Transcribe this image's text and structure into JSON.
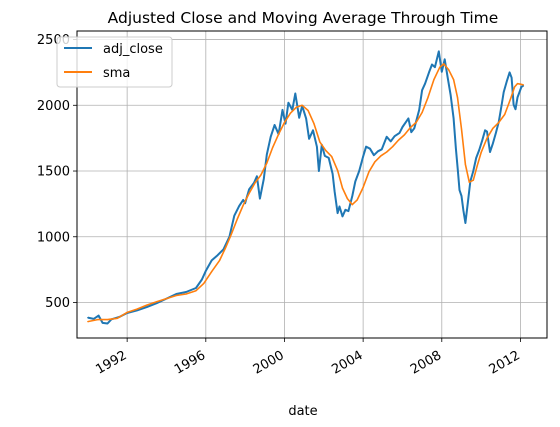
{
  "chart_data": {
    "type": "line",
    "title": "Adjusted Close and Moving Average Through Time",
    "xlabel": "date",
    "ylabel": "",
    "xlim": [
      1989.45,
      2013.35
    ],
    "ylim": [
      230,
      2565
    ],
    "x_ticks": [
      1992,
      1996,
      2000,
      2004,
      2008,
      2012
    ],
    "x_tick_labels": [
      "1992",
      "1996",
      "2000",
      "2004",
      "2008",
      "2012"
    ],
    "y_ticks": [
      500,
      1000,
      1500,
      2000,
      2500
    ],
    "y_tick_labels": [
      "500",
      "1000",
      "1500",
      "2000",
      "2500"
    ],
    "grid": true,
    "legend": "top-left",
    "series": [
      {
        "name": "adj_close",
        "color": "#1f77b4",
        "points": [
          [
            1990.0,
            385
          ],
          [
            1990.3,
            375
          ],
          [
            1990.55,
            400
          ],
          [
            1990.75,
            345
          ],
          [
            1991.0,
            340
          ],
          [
            1991.2,
            372
          ],
          [
            1991.6,
            390
          ],
          [
            1992.0,
            420
          ],
          [
            1992.5,
            440
          ],
          [
            1993.0,
            465
          ],
          [
            1993.5,
            495
          ],
          [
            1994.0,
            530
          ],
          [
            1994.5,
            565
          ],
          [
            1995.0,
            580
          ],
          [
            1995.5,
            610
          ],
          [
            1995.8,
            675
          ],
          [
            1996.0,
            740
          ],
          [
            1996.3,
            820
          ],
          [
            1996.6,
            860
          ],
          [
            1996.9,
            905
          ],
          [
            1997.2,
            1000
          ],
          [
            1997.45,
            1160
          ],
          [
            1997.7,
            1235
          ],
          [
            1997.9,
            1280
          ],
          [
            1998.0,
            1255
          ],
          [
            1998.2,
            1360
          ],
          [
            1998.45,
            1410
          ],
          [
            1998.6,
            1460
          ],
          [
            1998.75,
            1290
          ],
          [
            1998.95,
            1440
          ],
          [
            1999.1,
            1625
          ],
          [
            1999.3,
            1760
          ],
          [
            1999.5,
            1850
          ],
          [
            1999.7,
            1780
          ],
          [
            1999.9,
            1965
          ],
          [
            2000.05,
            1860
          ],
          [
            2000.2,
            2020
          ],
          [
            2000.4,
            1965
          ],
          [
            2000.55,
            2090
          ],
          [
            2000.75,
            1905
          ],
          [
            2000.9,
            1995
          ],
          [
            2001.1,
            1900
          ],
          [
            2001.25,
            1745
          ],
          [
            2001.45,
            1810
          ],
          [
            2001.65,
            1685
          ],
          [
            2001.75,
            1500
          ],
          [
            2001.9,
            1700
          ],
          [
            2002.05,
            1615
          ],
          [
            2002.25,
            1600
          ],
          [
            2002.45,
            1480
          ],
          [
            2002.55,
            1345
          ],
          [
            2002.7,
            1180
          ],
          [
            2002.8,
            1230
          ],
          [
            2002.95,
            1155
          ],
          [
            2003.1,
            1205
          ],
          [
            2003.25,
            1195
          ],
          [
            2003.45,
            1310
          ],
          [
            2003.6,
            1420
          ],
          [
            2003.8,
            1500
          ],
          [
            2004.0,
            1610
          ],
          [
            2004.15,
            1685
          ],
          [
            2004.35,
            1670
          ],
          [
            2004.55,
            1620
          ],
          [
            2004.75,
            1650
          ],
          [
            2004.95,
            1665
          ],
          [
            2005.2,
            1760
          ],
          [
            2005.4,
            1725
          ],
          [
            2005.6,
            1765
          ],
          [
            2005.85,
            1790
          ],
          [
            2006.0,
            1835
          ],
          [
            2006.3,
            1900
          ],
          [
            2006.45,
            1795
          ],
          [
            2006.6,
            1825
          ],
          [
            2006.85,
            1965
          ],
          [
            2007.0,
            2115
          ],
          [
            2007.15,
            2165
          ],
          [
            2007.35,
            2250
          ],
          [
            2007.5,
            2310
          ],
          [
            2007.65,
            2290
          ],
          [
            2007.85,
            2410
          ],
          [
            2008.0,
            2255
          ],
          [
            2008.15,
            2350
          ],
          [
            2008.3,
            2210
          ],
          [
            2008.45,
            2080
          ],
          [
            2008.6,
            1900
          ],
          [
            2008.72,
            1670
          ],
          [
            2008.82,
            1500
          ],
          [
            2008.9,
            1355
          ],
          [
            2009.0,
            1310
          ],
          [
            2009.1,
            1200
          ],
          [
            2009.2,
            1105
          ],
          [
            2009.32,
            1250
          ],
          [
            2009.45,
            1420
          ],
          [
            2009.6,
            1500
          ],
          [
            2009.75,
            1600
          ],
          [
            2009.9,
            1660
          ],
          [
            2010.05,
            1730
          ],
          [
            2010.2,
            1810
          ],
          [
            2010.3,
            1800
          ],
          [
            2010.45,
            1645
          ],
          [
            2010.6,
            1710
          ],
          [
            2010.75,
            1790
          ],
          [
            2010.9,
            1875
          ],
          [
            2011.05,
            2010
          ],
          [
            2011.15,
            2100
          ],
          [
            2011.3,
            2180
          ],
          [
            2011.45,
            2250
          ],
          [
            2011.55,
            2210
          ],
          [
            2011.65,
            2005
          ],
          [
            2011.75,
            1970
          ],
          [
            2011.85,
            2060
          ],
          [
            2011.95,
            2100
          ],
          [
            2012.05,
            2140
          ],
          [
            2012.15,
            2150
          ]
        ]
      },
      {
        "name": "sma",
        "color": "#ff7f0e",
        "points": [
          [
            1990.0,
            355
          ],
          [
            1990.5,
            370
          ],
          [
            1991.0,
            370
          ],
          [
            1991.5,
            380
          ],
          [
            1992.0,
            425
          ],
          [
            1992.5,
            450
          ],
          [
            1993.0,
            480
          ],
          [
            1993.5,
            505
          ],
          [
            1994.0,
            530
          ],
          [
            1994.5,
            553
          ],
          [
            1995.0,
            565
          ],
          [
            1995.5,
            590
          ],
          [
            1995.9,
            645
          ],
          [
            1996.3,
            735
          ],
          [
            1996.7,
            820
          ],
          [
            1997.0,
            915
          ],
          [
            1997.3,
            1020
          ],
          [
            1997.6,
            1135
          ],
          [
            1997.9,
            1240
          ],
          [
            1998.2,
            1330
          ],
          [
            1998.5,
            1410
          ],
          [
            1998.8,
            1470
          ],
          [
            1999.1,
            1560
          ],
          [
            1999.4,
            1680
          ],
          [
            1999.7,
            1780
          ],
          [
            2000.0,
            1870
          ],
          [
            2000.3,
            1940
          ],
          [
            2000.6,
            1985
          ],
          [
            2000.9,
            2000
          ],
          [
            2001.2,
            1960
          ],
          [
            2001.5,
            1860
          ],
          [
            2001.8,
            1720
          ],
          [
            2002.1,
            1655
          ],
          [
            2002.4,
            1610
          ],
          [
            2002.7,
            1505
          ],
          [
            2002.95,
            1370
          ],
          [
            2003.2,
            1290
          ],
          [
            2003.45,
            1245
          ],
          [
            2003.7,
            1280
          ],
          [
            2004.0,
            1375
          ],
          [
            2004.3,
            1495
          ],
          [
            2004.6,
            1570
          ],
          [
            2004.9,
            1615
          ],
          [
            2005.2,
            1645
          ],
          [
            2005.5,
            1685
          ],
          [
            2005.8,
            1735
          ],
          [
            2006.1,
            1775
          ],
          [
            2006.4,
            1830
          ],
          [
            2006.7,
            1870
          ],
          [
            2007.0,
            1945
          ],
          [
            2007.3,
            2060
          ],
          [
            2007.6,
            2195
          ],
          [
            2007.9,
            2290
          ],
          [
            2008.1,
            2315
          ],
          [
            2008.35,
            2270
          ],
          [
            2008.6,
            2195
          ],
          [
            2008.8,
            2060
          ],
          [
            2009.0,
            1820
          ],
          [
            2009.2,
            1550
          ],
          [
            2009.4,
            1415
          ],
          [
            2009.6,
            1430
          ],
          [
            2009.8,
            1540
          ],
          [
            2010.0,
            1640
          ],
          [
            2010.3,
            1750
          ],
          [
            2010.6,
            1825
          ],
          [
            2010.9,
            1870
          ],
          [
            2011.2,
            1930
          ],
          [
            2011.5,
            2050
          ],
          [
            2011.7,
            2140
          ],
          [
            2011.85,
            2165
          ],
          [
            2012.0,
            2160
          ],
          [
            2012.15,
            2155
          ]
        ]
      }
    ]
  }
}
